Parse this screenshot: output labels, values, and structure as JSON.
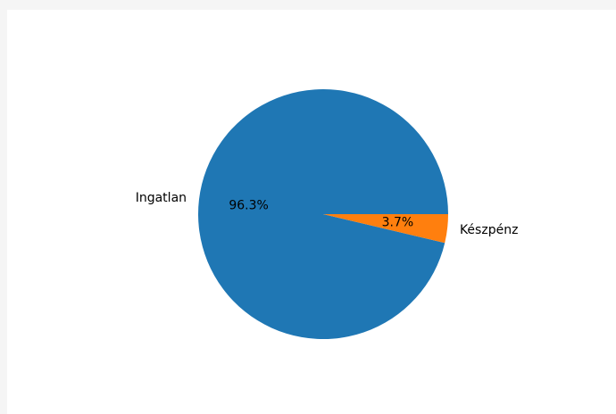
{
  "chart_data": {
    "type": "pie",
    "title": "",
    "slices": [
      {
        "label": "Ingatlan",
        "value": 96.3,
        "pct_label": "96.3%",
        "color": "#1f77b4"
      },
      {
        "label": "Készpénz",
        "value": 3.7,
        "pct_label": "3.7%",
        "color": "#ff7f0e"
      }
    ],
    "start_angle_deg": 0,
    "direction": "counterclockwise",
    "legend": "none"
  }
}
